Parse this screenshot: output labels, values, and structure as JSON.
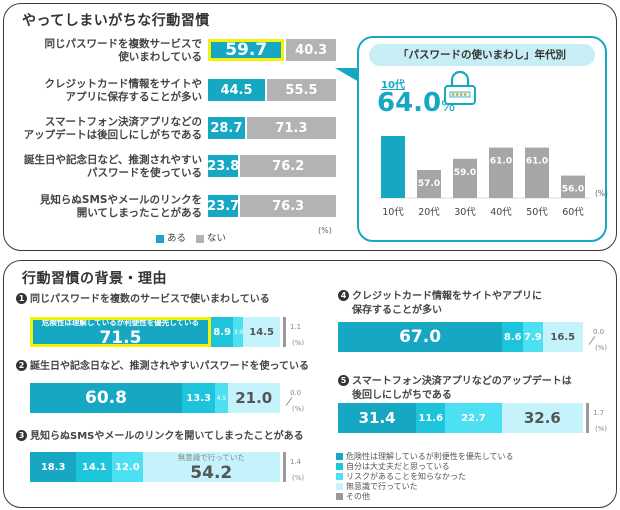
{
  "top_panel": {
    "title": "やってしまいがちな行動習慣",
    "legend": {
      "yes": "ある",
      "no": "ない"
    },
    "unit": "(%)"
  },
  "callout": {
    "title": "「パスワードの使いまわし」年代別",
    "highlight_label": "10代",
    "highlight_value": "64.0",
    "highlight_unit": "%",
    "unit": "(%)",
    "icon": "padlock-icon"
  },
  "bottom_panel": {
    "title": "行動習慣の背景・理由",
    "unit": "(%)",
    "legend": [
      "危険性は理解しているが利便性を優先している",
      "自分は大丈夫だと思っている",
      "リスクがあることを知らなかった",
      "無意識で行っていた",
      "その他"
    ]
  },
  "colors": {
    "yes": "#16a8c2",
    "no": "#b3b3b3",
    "reason1": "#16a8c2",
    "reason2": "#1cc4dc",
    "reason3": "#4de0f2",
    "reason4": "#c4f3fb",
    "reason5": "#9a9a9a",
    "highlight": "#f2f20a"
  },
  "chart_data": [
    {
      "type": "bar",
      "stacked": true,
      "orientation": "horizontal",
      "title": "やってしまいがちな行動習慣",
      "categories": [
        "同じパスワードを複数サービスで使いまわしている",
        "クレジットカード情報をサイトやアプリに保存することが多い",
        "スマートフォン決済アプリなどのアップデートは後回しにしがちである",
        "誕生日や記念日など、推測されやすいパスワードを使っている",
        "見知らぬSMSやメールのリンクを開いてしまったことがある"
      ],
      "labels_display": [
        [
          "同じパスワードを複数サービスで",
          "使いまわしている"
        ],
        [
          "クレジットカード情報をサイトや",
          "アプリに保存することが多い"
        ],
        [
          "スマートフォン決済アプリなどの",
          "アップデートは後回しにしがちである"
        ],
        [
          "誕生日や記念日など、推測されやすい",
          "パスワードを使っている"
        ],
        [
          "見知らぬSMSやメールのリンクを",
          "開いてしまったことがある"
        ]
      ],
      "series": [
        {
          "name": "ある",
          "values": [
            59.7,
            44.5,
            28.7,
            23.8,
            23.7
          ]
        },
        {
          "name": "ない",
          "values": [
            40.3,
            55.5,
            71.3,
            76.2,
            76.3
          ]
        }
      ],
      "value_labels": {
        "yes": [
          "59.7",
          "44.5",
          "28.7",
          "23.8",
          "23.7"
        ],
        "no": [
          "40.3",
          "55.5",
          "71.3",
          "76.2",
          "76.3"
        ]
      },
      "highlighted": "59.7",
      "ylabel": "(%)",
      "legend": "bottom"
    },
    {
      "type": "bar",
      "title": "「パスワードの使いまわし」年代別",
      "categories": [
        "10代",
        "20代",
        "30代",
        "40代",
        "50代",
        "60代"
      ],
      "values": [
        64.0,
        57.0,
        59.0,
        61.0,
        61.0,
        56.0
      ],
      "value_labels": [
        "",
        "57.0",
        "59.0",
        "61.0",
        "61.0",
        "56.0"
      ],
      "highlighted_category": "10代",
      "ylabel": "(%)",
      "ylim": [
        50,
        65
      ]
    },
    {
      "type": "bar",
      "stacked": true,
      "orientation": "horizontal",
      "title": "行動習慣の背景・理由",
      "series_names": [
        "危険性は理解しているが利便性を優先している",
        "自分は大丈夫だと思っている",
        "リスクがあることを知らなかった",
        "無意識で行っていた",
        "その他"
      ],
      "questions": [
        {
          "num": "1",
          "label": [
            "同じパスワードを複数のサービスで使いまわしている"
          ],
          "values": [
            71.5,
            8.9,
            3.9,
            14.5,
            1.1
          ],
          "labels": [
            "71.5",
            "8.9",
            "3.9",
            "14.5",
            "1.1"
          ],
          "highlight_index": 0,
          "highlight_caption": "危険性は理解しているが利便性を優先している"
        },
        {
          "num": "2",
          "label": [
            "誕生日や記念日など、推測されやすいパスワードを使っている"
          ],
          "values": [
            60.8,
            13.3,
            4.9,
            21.0,
            0.0
          ],
          "labels": [
            "60.8",
            "13.3",
            "4.9",
            "21.0",
            "0.0"
          ]
        },
        {
          "num": "3",
          "label": [
            "見知らぬSMSやメールのリンクを開いてしまったことがある"
          ],
          "values": [
            18.3,
            14.1,
            12.0,
            54.2,
            1.4
          ],
          "labels": [
            "18.3",
            "14.1",
            "12.0",
            "54.2",
            "1.4"
          ],
          "caption_index": 3,
          "caption": "無意識で行っていた"
        },
        {
          "num": "4",
          "label": [
            "クレジットカード情報をサイトやアプリに",
            "保存することが多い"
          ],
          "values": [
            67.0,
            8.6,
            7.9,
            16.5,
            0.0
          ],
          "labels": [
            "67.0",
            "8.6",
            "7.9",
            "16.5",
            "0.0"
          ]
        },
        {
          "num": "5",
          "label": [
            "スマートフォン決済アプリなどのアップデートは",
            "後回しにしがちである"
          ],
          "values": [
            31.4,
            11.6,
            22.7,
            32.6,
            1.7
          ],
          "labels": [
            "31.4",
            "11.6",
            "22.7",
            "32.6",
            "1.7"
          ]
        }
      ],
      "xlim": [
        0,
        100
      ],
      "ylabel": "(%)",
      "legend": "bottom-right"
    }
  ]
}
